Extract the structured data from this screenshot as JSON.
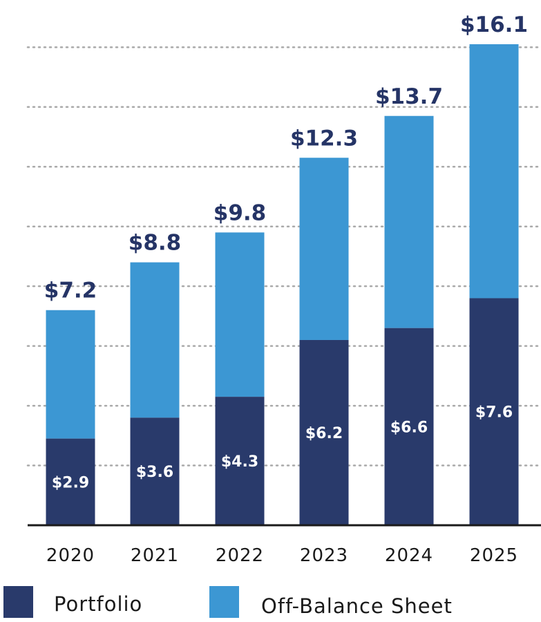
{
  "chart_data": {
    "type": "bar",
    "stacked": true,
    "categories": [
      "2020",
      "2021",
      "2022",
      "2023",
      "2024",
      "2025"
    ],
    "series": [
      {
        "name": "Portfolio",
        "values": [
          2.9,
          3.6,
          4.3,
          6.2,
          6.6,
          7.6
        ],
        "labels": [
          "$2.9",
          "$3.6",
          "$4.3",
          "$6.2",
          "$6.6",
          "$7.6"
        ],
        "color": "#293a6b"
      },
      {
        "name": "Off-Balance Sheet",
        "values": [
          4.3,
          5.2,
          5.5,
          6.1,
          7.1,
          8.5
        ],
        "color": "#3c97d3"
      }
    ],
    "totals": [
      7.2,
      8.8,
      9.8,
      12.3,
      13.7,
      16.1
    ],
    "total_labels": [
      "$7.2",
      "$8.8",
      "$9.8",
      "$12.3",
      "$13.7",
      "$16.1"
    ],
    "title": "",
    "xlabel": "",
    "ylabel": "",
    "ylim": [
      0,
      16.1
    ],
    "grid": true,
    "legend_position": "bottom"
  },
  "legend": {
    "portfolio_label": "Portfolio",
    "off_balance_label": "Off-Balance Sheet"
  },
  "colors": {
    "portfolio": "#293a6b",
    "off_balance": "#3c97d3",
    "label_dark": "#253466"
  }
}
